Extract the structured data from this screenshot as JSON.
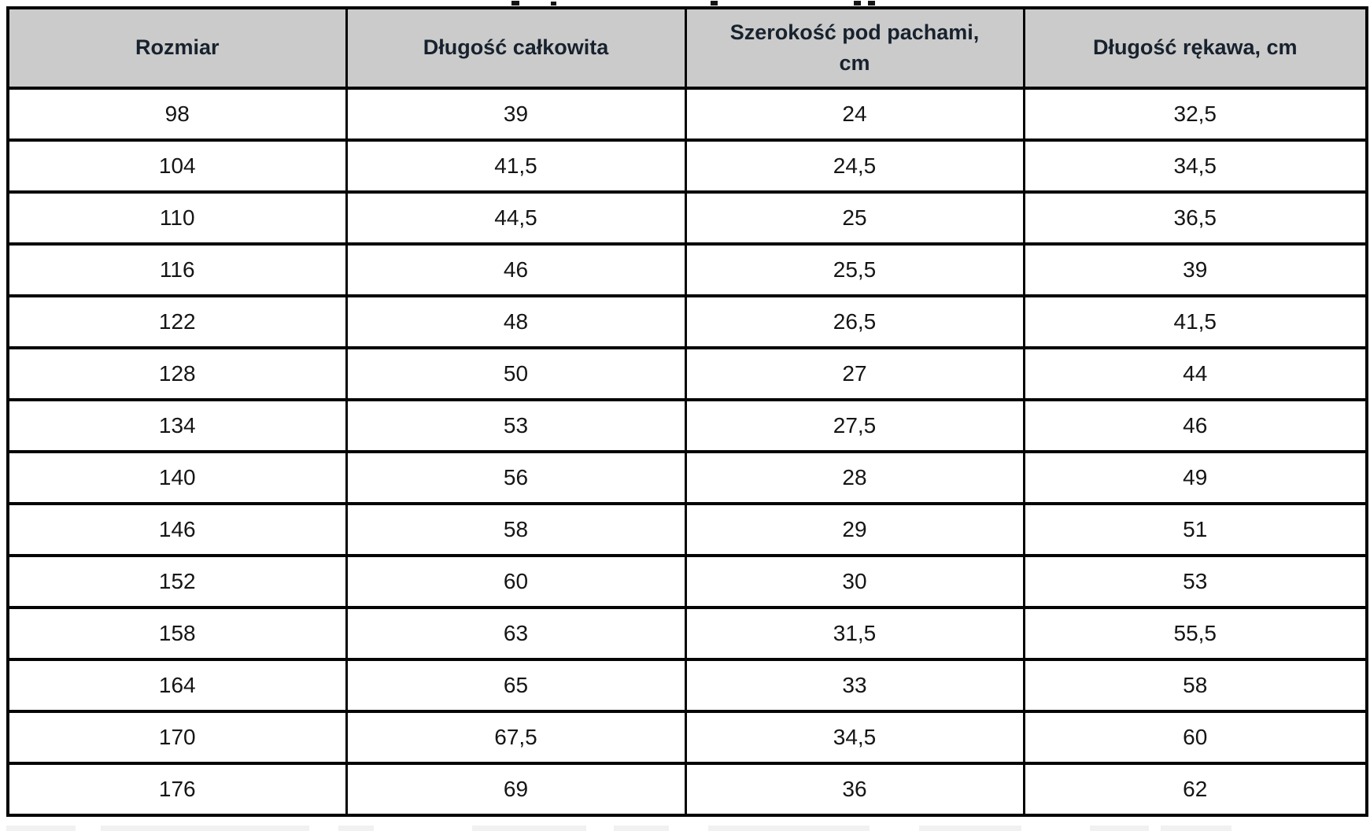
{
  "table": {
    "headers": [
      "Rozmiar",
      "Długość całkowita",
      "Szerokość pod pachami, cm",
      "Długość rękawa, cm"
    ],
    "rows": [
      [
        "98",
        "39",
        "24",
        "32,5"
      ],
      [
        "104",
        "41,5",
        "24,5",
        "34,5"
      ],
      [
        "110",
        "44,5",
        "25",
        "36,5"
      ],
      [
        "116",
        "46",
        "25,5",
        "39"
      ],
      [
        "122",
        "48",
        "26,5",
        "41,5"
      ],
      [
        "128",
        "50",
        "27",
        "44"
      ],
      [
        "134",
        "53",
        "27,5",
        "46"
      ],
      [
        "140",
        "56",
        "28",
        "49"
      ],
      [
        "146",
        "58",
        "29",
        "51"
      ],
      [
        "152",
        "60",
        "30",
        "53"
      ],
      [
        "158",
        "63",
        "31,5",
        "55,5"
      ],
      [
        "164",
        "65",
        "33",
        "58"
      ],
      [
        "170",
        "67,5",
        "34,5",
        "60"
      ],
      [
        "176",
        "69",
        "36",
        "62"
      ]
    ],
    "colors": {
      "header_bg": "#cbcbcb",
      "grid": "#050505",
      "header_text": "#18222e",
      "cell_text": "#151515"
    }
  }
}
